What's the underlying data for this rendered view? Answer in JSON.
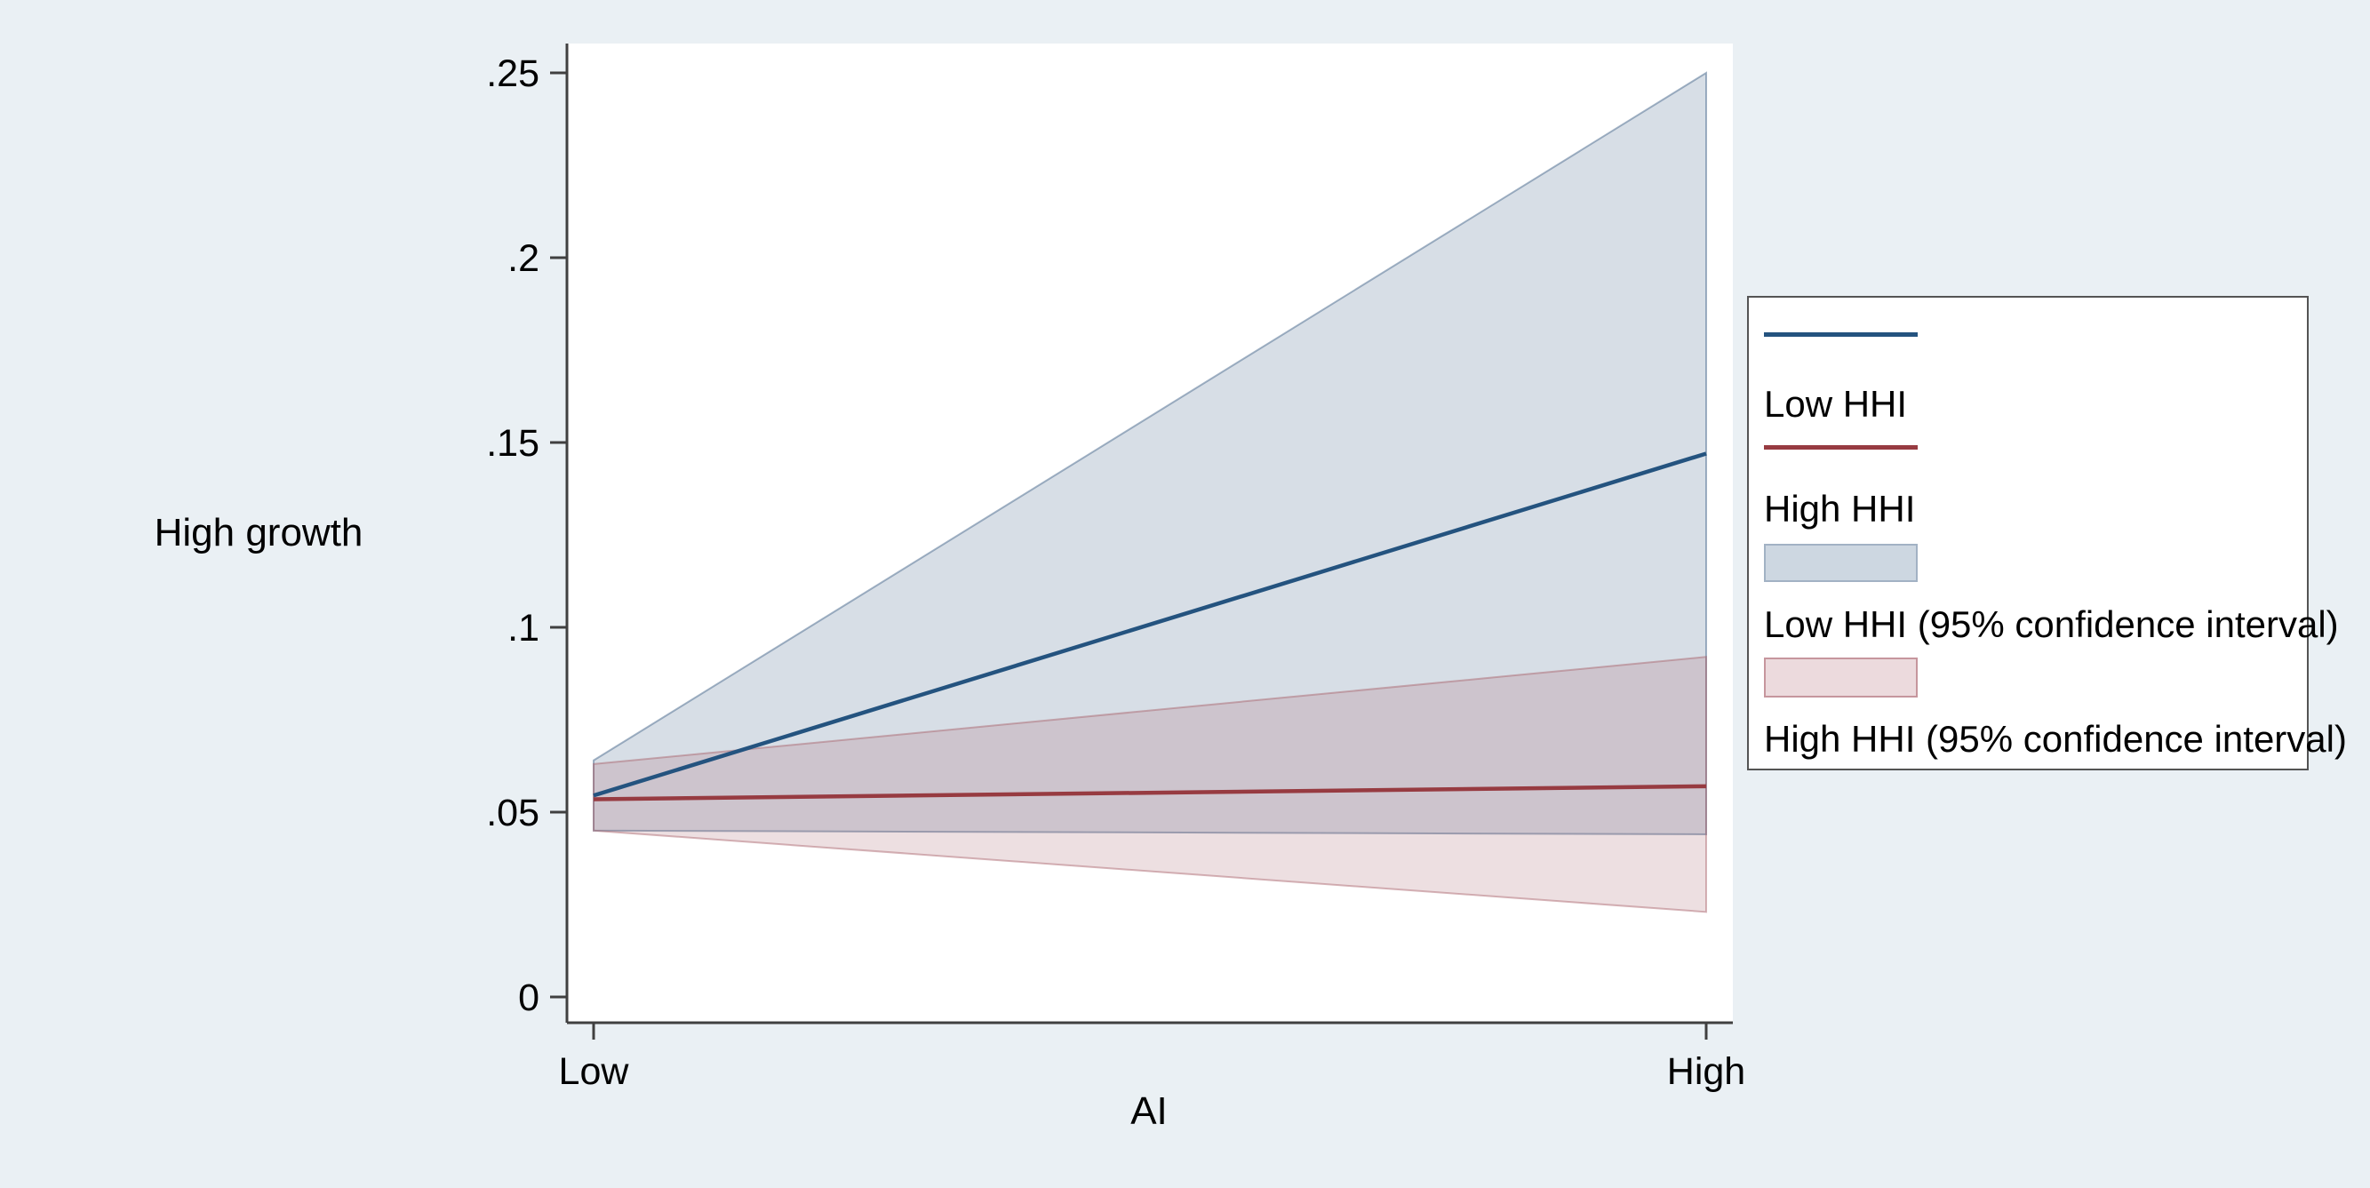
{
  "chart_data": {
    "type": "line",
    "title": "",
    "x": {
      "title": "AI",
      "categories": [
        "Low",
        "High"
      ]
    },
    "y": {
      "title": "High growth",
      "tick_labels": [
        "0",
        ".05",
        ".1",
        ".15",
        ".2",
        ".25"
      ],
      "tick_values": [
        0,
        0.05,
        0.1,
        0.15,
        0.2,
        0.25
      ],
      "range": [
        0,
        0.25
      ]
    },
    "grid": false,
    "legend_position": "right-outside",
    "series": [
      {
        "name": "Low HHI",
        "values": [
          0.0545,
          0.147
        ],
        "ci_label": "Low HHI (95% confidence interval)",
        "ci_lower": [
          0.045,
          0.044
        ],
        "ci_upper": [
          0.064,
          0.25
        ],
        "line_color": "#24537f",
        "band_fill": "rgba(72,104,140,0.22)",
        "band_edge": "rgba(72,104,140,0.50)",
        "swatch_fill": "#cdd7e1",
        "swatch_edge": "#a2b2c4"
      },
      {
        "name": "High HHI",
        "values": [
          0.0535,
          0.057
        ],
        "ci_label": "High HHI (95% confidence interval)",
        "ci_lower": [
          0.045,
          0.023
        ],
        "ci_upper": [
          0.063,
          0.092
        ],
        "line_color": "#973b41",
        "band_fill": "rgba(166,94,103,0.20)",
        "band_edge": "rgba(166,94,103,0.45)",
        "swatch_fill": "#ecdadd",
        "swatch_edge": "#c6969d"
      }
    ],
    "colors": {
      "figure_background": "#eaf0f4",
      "plot_background": "#ffffff",
      "axis": "#404040",
      "text": "#000000",
      "legend_border": "#545454"
    }
  }
}
